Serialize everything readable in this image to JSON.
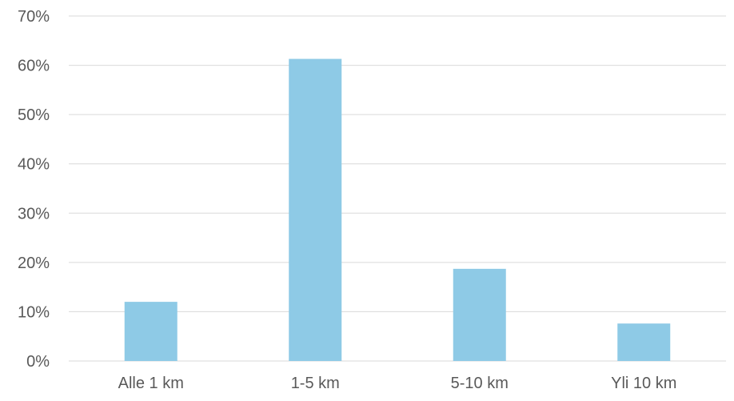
{
  "chart_data": {
    "type": "bar",
    "title": "",
    "xlabel": "",
    "ylabel": "",
    "categories": [
      "Alle 1 km",
      "1-5 km",
      "5-10 km",
      "Yli 10 km"
    ],
    "values": [
      12,
      61.3,
      18.7,
      7.6
    ],
    "ylim": [
      0,
      70
    ],
    "y_ticks": [
      0,
      10,
      20,
      30,
      40,
      50,
      60,
      70
    ],
    "y_tick_labels": [
      "0%",
      "10%",
      "20%",
      "30%",
      "40%",
      "50%",
      "60%",
      "70%"
    ],
    "grid": true,
    "legend": "none",
    "bar_color": "#8ecae6"
  }
}
